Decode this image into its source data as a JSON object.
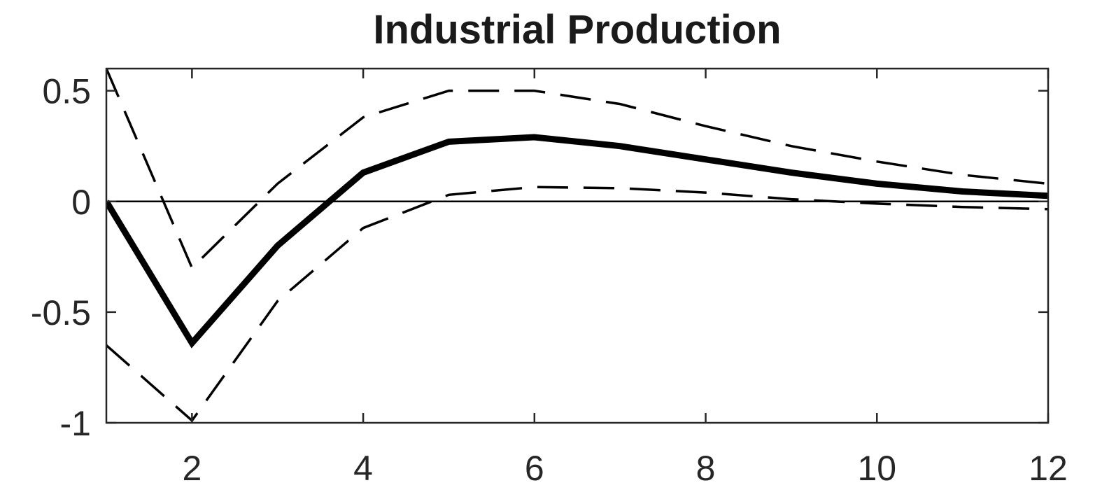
{
  "chart_data": {
    "type": "line",
    "title": "Industrial Production",
    "xlabel": "",
    "ylabel": "",
    "xlim": [
      1,
      12
    ],
    "ylim": [
      -1,
      0.6
    ],
    "grid": false,
    "x_ticks": [
      2,
      4,
      6,
      8,
      10,
      12
    ],
    "y_ticks": [
      -1,
      -0.5,
      0,
      0.5
    ],
    "x_tick_labels": [
      "2",
      "4",
      "6",
      "8",
      "10",
      "12"
    ],
    "y_tick_labels": [
      "-1",
      "-0.5",
      "0",
      "0.5"
    ],
    "reference_line": {
      "y": 0,
      "color": "#000000"
    },
    "x": [
      1,
      2,
      3,
      4,
      5,
      6,
      7,
      8,
      9,
      10,
      11,
      12
    ],
    "series": [
      {
        "name": "upper band",
        "style": "dashed",
        "color": "#000000",
        "values": [
          0.6,
          -0.3,
          0.08,
          0.38,
          0.5,
          0.5,
          0.44,
          0.34,
          0.25,
          0.18,
          0.12,
          0.08
        ]
      },
      {
        "name": "impulse response",
        "style": "solid",
        "color": "#000000",
        "values": [
          0.0,
          -0.64,
          -0.2,
          0.13,
          0.27,
          0.29,
          0.25,
          0.19,
          0.13,
          0.08,
          0.045,
          0.025
        ]
      },
      {
        "name": "lower band",
        "style": "dashed",
        "color": "#000000",
        "values": [
          -0.65,
          -0.99,
          -0.45,
          -0.12,
          0.03,
          0.065,
          0.06,
          0.04,
          0.01,
          -0.01,
          -0.025,
          -0.035
        ]
      }
    ]
  }
}
